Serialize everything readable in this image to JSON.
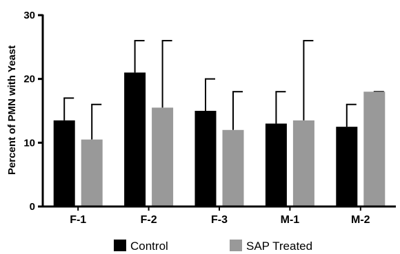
{
  "chart_data": {
    "type": "bar",
    "title": "",
    "xlabel": "",
    "ylabel": "Percent of PMN with Yeast",
    "ylim": [
      0,
      30
    ],
    "yticks": [
      0,
      10,
      20,
      30
    ],
    "grid": false,
    "legend_position": "bottom",
    "categories": [
      "F-1",
      "F-2",
      "F-3",
      "M-1",
      "M-2"
    ],
    "series": [
      {
        "name": "Control",
        "color": "#000000",
        "values": [
          13.5,
          21,
          15,
          13,
          12.5
        ],
        "error_upper": [
          17,
          26,
          20,
          18,
          16
        ]
      },
      {
        "name": "SAP Treated",
        "color": "#999999",
        "values": [
          10.5,
          15.5,
          12,
          13.5,
          18
        ],
        "error_upper": [
          16,
          26,
          18,
          26,
          18
        ]
      }
    ]
  }
}
